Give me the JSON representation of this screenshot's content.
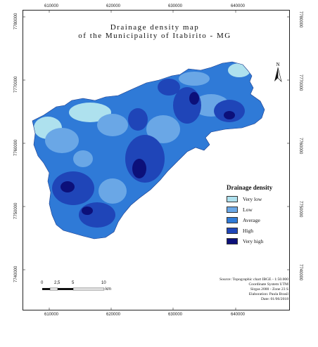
{
  "title": {
    "line1": "Drainage density map",
    "line2": "of the Municipality of Itabirito - MG"
  },
  "x_ticks": [
    "610000",
    "620000",
    "630000",
    "640000"
  ],
  "y_ticks": [
    "7780000",
    "7770000",
    "7760000",
    "7750000",
    "7740000"
  ],
  "legend": {
    "title": "Drainage density",
    "items": [
      {
        "label": "Very low",
        "color": "#aee1ee"
      },
      {
        "label": "Low",
        "color": "#6aa7e6"
      },
      {
        "label": "Average",
        "color": "#2f7ad7"
      },
      {
        "label": "High",
        "color": "#1f45b8"
      },
      {
        "label": "Very high",
        "color": "#0c107a"
      }
    ]
  },
  "north_label": "N",
  "scale_bar": {
    "labels": [
      "0",
      "2,5",
      "5",
      "10"
    ],
    "unit": "km"
  },
  "source": [
    "Source: Topographic chart IBGE - 1:50.000",
    "Coordinate System UTM",
    "Sirgas 2000 - Zone 23 S",
    "Elaboration: Paula Brasil",
    "Date: 01/06/2018"
  ]
}
